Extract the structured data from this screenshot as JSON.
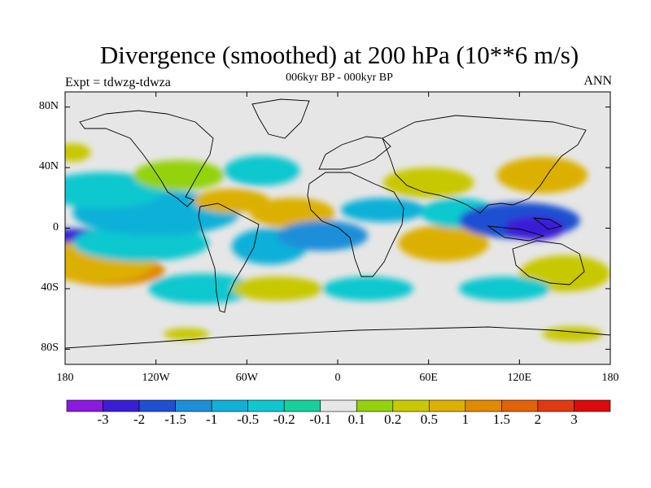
{
  "title": "Divergence (smoothed) at 200 hPa (10**6 m/s)",
  "subtitle": "006kyr BP - 000kyr BP",
  "left_label": "Expt = tdwzg-tdwza",
  "right_label": "ANN",
  "lat_labels": [
    "80N",
    "40N",
    "0",
    "40S",
    "80S"
  ],
  "lon_labels": [
    "180",
    "120W",
    "60W",
    "0",
    "60E",
    "120E",
    "180"
  ],
  "colorbar": {
    "labels": [
      "-3",
      "-2",
      "-1.5",
      "-1",
      "-0.5",
      "-0.2",
      "-0.1",
      "0.1",
      "0.2",
      "0.5",
      "1",
      "1.5",
      "2",
      "3"
    ],
    "colors": [
      "#8a1ae0",
      "#3a1ed6",
      "#1f50d2",
      "#1d8fd8",
      "#11b0d8",
      "#0fc8cf",
      "#16d29a",
      "#e6e6e6",
      "#94d20c",
      "#c8c805",
      "#dcb000",
      "#e08a00",
      "#e2620a",
      "#e03a12",
      "#dc0a0a"
    ]
  },
  "map_data": {
    "regions": [
      {
        "lon": -180,
        "lat": -10,
        "w": 40,
        "h": 10,
        "c": 2
      },
      {
        "lon": -175,
        "lat": -8,
        "w": 30,
        "h": 6,
        "c": 1
      },
      {
        "lon": -150,
        "lat": -28,
        "w": 36,
        "h": 10,
        "c": 11
      },
      {
        "lon": -160,
        "lat": -22,
        "w": 40,
        "h": 14,
        "c": 10
      },
      {
        "lon": -130,
        "lat": -10,
        "w": 45,
        "h": 12,
        "c": 5
      },
      {
        "lon": -120,
        "lat": 10,
        "w": 55,
        "h": 15,
        "c": 4
      },
      {
        "lon": -155,
        "lat": 25,
        "w": 40,
        "h": 12,
        "c": 5
      },
      {
        "lon": -105,
        "lat": 35,
        "w": 30,
        "h": 10,
        "c": 8
      },
      {
        "lon": -70,
        "lat": 18,
        "w": 25,
        "h": 8,
        "c": 10
      },
      {
        "lon": -50,
        "lat": 38,
        "w": 25,
        "h": 10,
        "c": 5
      },
      {
        "lon": -30,
        "lat": 10,
        "w": 28,
        "h": 10,
        "c": 10
      },
      {
        "lon": -45,
        "lat": -12,
        "w": 25,
        "h": 12,
        "c": 4
      },
      {
        "lon": -10,
        "lat": -5,
        "w": 30,
        "h": 10,
        "c": 3
      },
      {
        "lon": 30,
        "lat": 12,
        "w": 28,
        "h": 8,
        "c": 4
      },
      {
        "lon": 60,
        "lat": 30,
        "w": 30,
        "h": 10,
        "c": 9
      },
      {
        "lon": 70,
        "lat": -10,
        "w": 30,
        "h": 12,
        "c": 10
      },
      {
        "lon": 80,
        "lat": 10,
        "w": 25,
        "h": 10,
        "c": 5
      },
      {
        "lon": 120,
        "lat": 5,
        "w": 40,
        "h": 12,
        "c": 2
      },
      {
        "lon": 130,
        "lat": 0,
        "w": 20,
        "h": 8,
        "c": 1
      },
      {
        "lon": 135,
        "lat": 35,
        "w": 30,
        "h": 12,
        "c": 10
      },
      {
        "lon": 150,
        "lat": -30,
        "w": 30,
        "h": 12,
        "c": 9
      },
      {
        "lon": 110,
        "lat": -40,
        "w": 30,
        "h": 8,
        "c": 5
      },
      {
        "lon": -90,
        "lat": -40,
        "w": 35,
        "h": 10,
        "c": 5
      },
      {
        "lon": -40,
        "lat": -40,
        "w": 30,
        "h": 8,
        "c": 9
      },
      {
        "lon": 20,
        "lat": -40,
        "w": 30,
        "h": 8,
        "c": 5
      },
      {
        "lon": -175,
        "lat": 50,
        "w": 12,
        "h": 6,
        "c": 9
      },
      {
        "lon": 155,
        "lat": -70,
        "w": 20,
        "h": 5,
        "c": 9
      },
      {
        "lon": -100,
        "lat": -70,
        "w": 15,
        "h": 4,
        "c": 9
      }
    ]
  }
}
